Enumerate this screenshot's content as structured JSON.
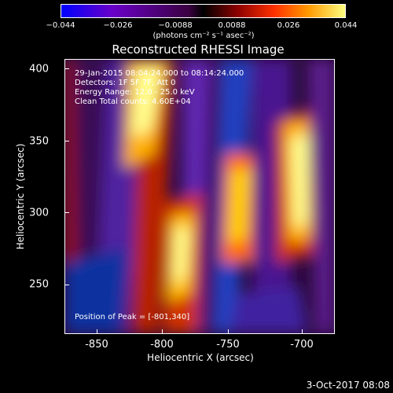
{
  "colorbar": {
    "ticks": [
      "−0.044",
      "−0.026",
      "−0.0088",
      "0.0088",
      "0.026",
      "0.044"
    ],
    "units_label": "(photons cm⁻² s⁻¹ asec⁻²)"
  },
  "title": "Reconstructed RHESSI Image",
  "annotations": {
    "time_range": "29-Jan-2015 08:04:24.000 to 08:14:24.000",
    "detectors": "Detectors: 1F 5F 7F, Att 0",
    "energy_range": "Energy Range: 12.0 - 25.0 keV",
    "algorithm": "Clean    Total counts: 4.60E+04",
    "peak": "Position of Peak = [-801,340]"
  },
  "axes": {
    "xlabel": "Heliocentric X (arcsec)",
    "ylabel": "Heliocentric Y (arcsec)",
    "xticks": [
      "-850",
      "-800",
      "-750",
      "-700"
    ],
    "yticks": [
      "400",
      "350",
      "300",
      "250"
    ]
  },
  "timestamp": "3-Oct-2017 08:08"
}
